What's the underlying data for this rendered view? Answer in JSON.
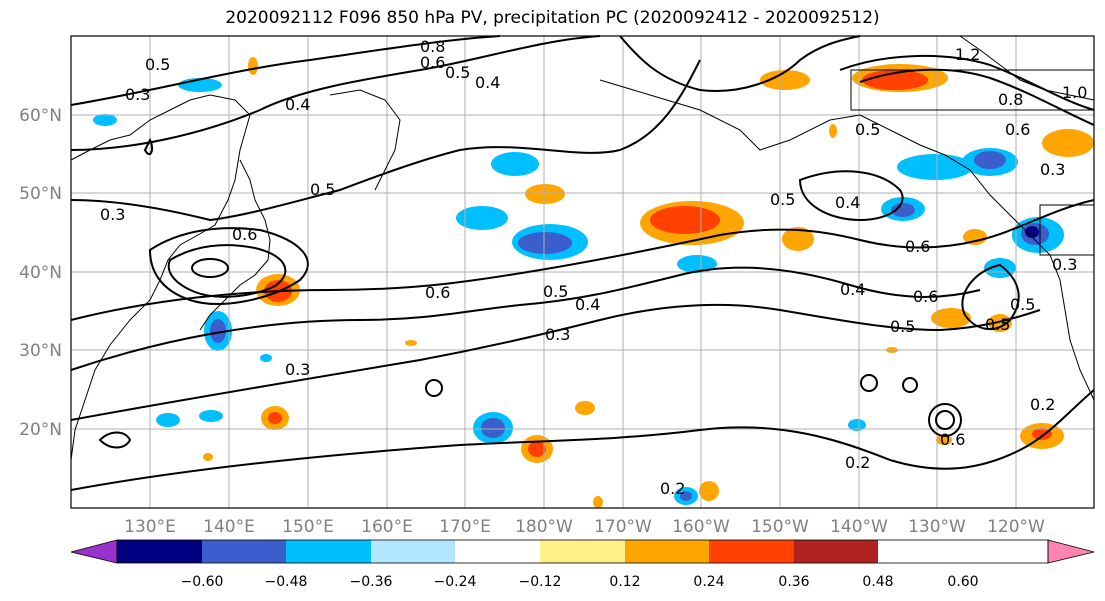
{
  "title": "2020092112 F096 850 hPa PV, precipitation PC (2020092412 - 2020092512)",
  "map": {
    "lon_ticks": [
      "130°E",
      "140°E",
      "150°E",
      "160°E",
      "170°E",
      "180°W",
      "170°W",
      "160°W",
      "150°W",
      "140°W",
      "130°W",
      "120°W"
    ],
    "lat_ticks": [
      "60°N",
      "50°N",
      "40°N",
      "30°N",
      "20°N"
    ],
    "contour_labels": [
      "0.8",
      "0.6",
      "0.5",
      "0.4",
      "1.2",
      "1.0",
      "0.8",
      "0.6",
      "0.5",
      "0.5",
      "0.4",
      "0.3",
      "0.3",
      "0.5",
      "0.5",
      "0.4",
      "0.6",
      "0.6",
      "0.5",
      "0.4",
      "0.6",
      "0.4",
      "0.5",
      "0.3",
      "0.6",
      "0.3",
      "0.3",
      "0.2",
      "0.5",
      "0.6",
      "0.2",
      "0.2",
      "0.5",
      "0.3"
    ],
    "colors": {
      "positive": [
        "#fff08a",
        "#ffa500",
        "#ff4000",
        "#b22222",
        "#ff85b0"
      ],
      "negative": [
        "#b3e6ff",
        "#00bfff",
        "#3a5fcd",
        "#000080",
        "#9932cc"
      ]
    }
  },
  "colorbar": {
    "labels": [
      "−0.60",
      "−0.48",
      "−0.36",
      "−0.24",
      "−0.12",
      "0.12",
      "0.24",
      "0.36",
      "0.48",
      "0.60"
    ],
    "colors": [
      "#9932cc",
      "#000080",
      "#3a5fcd",
      "#00bfff",
      "#b3e6ff",
      "#ffffff",
      "#fff08a",
      "#ffa500",
      "#ff4000",
      "#b22222",
      "#ff85b0"
    ]
  }
}
